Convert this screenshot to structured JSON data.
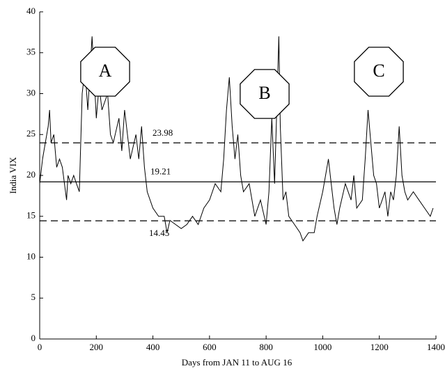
{
  "chart_data": {
    "type": "line",
    "x_label": "Days from JAN 11 to AUG 16",
    "y_label": "India VIX",
    "x": [
      0,
      10,
      20,
      30,
      35,
      40,
      50,
      60,
      70,
      80,
      95,
      100,
      110,
      120,
      130,
      140,
      150,
      160,
      170,
      185,
      200,
      210,
      220,
      240,
      250,
      260,
      280,
      290,
      300,
      320,
      340,
      350,
      360,
      370,
      380,
      400,
      420,
      440,
      450,
      460,
      480,
      500,
      520,
      540,
      560,
      580,
      600,
      620,
      640,
      650,
      660,
      670,
      680,
      690,
      700,
      710,
      720,
      740,
      760,
      780,
      800,
      810,
      820,
      830,
      840,
      845,
      850,
      860,
      870,
      880,
      900,
      920,
      930,
      950,
      970,
      980,
      1000,
      1010,
      1020,
      1030,
      1040,
      1050,
      1060,
      1080,
      1100,
      1110,
      1120,
      1140,
      1150,
      1160,
      1170,
      1180,
      1190,
      1200,
      1210,
      1220,
      1230,
      1240,
      1250,
      1260,
      1270,
      1280,
      1290,
      1300,
      1320,
      1340,
      1360,
      1380,
      1390
    ],
    "series": [
      {
        "name": "India VIX",
        "color": "#000000",
        "values": [
          19,
          22,
          24,
          26,
          28,
          24,
          25,
          21,
          22,
          21,
          17,
          20,
          19,
          20,
          19,
          18,
          30,
          33,
          28,
          37,
          27,
          31,
          28,
          30,
          25,
          24,
          27,
          23,
          28,
          22,
          25,
          22,
          26,
          21,
          18,
          16,
          15,
          15,
          13,
          14.5,
          14,
          13.5,
          14,
          15,
          14,
          16,
          17,
          19,
          18,
          22,
          28,
          32,
          26,
          22,
          25,
          20,
          18,
          19,
          15,
          17,
          14,
          18,
          27,
          19,
          31,
          37,
          26,
          17,
          18,
          15,
          14,
          13,
          12,
          13,
          13,
          15,
          18,
          20,
          22,
          19,
          16,
          14,
          16,
          19,
          17,
          20,
          16,
          17,
          22,
          28,
          24,
          20,
          19,
          16,
          17,
          18,
          15,
          18,
          17,
          20,
          26,
          20,
          18,
          17,
          18,
          17,
          16,
          15,
          16
        ]
      }
    ],
    "reference_lines": [
      {
        "value": 23.98,
        "style": "dashed"
      },
      {
        "value": 19.21,
        "style": "solid"
      },
      {
        "value": 14.45,
        "style": "dashed"
      }
    ],
    "annotations": [
      "A",
      "B",
      "C"
    ],
    "xlim": [
      0,
      1400
    ],
    "ylim": [
      0,
      40
    ],
    "xticks": [
      0,
      200,
      400,
      600,
      800,
      1000,
      1200,
      1400
    ],
    "yticks": [
      0,
      5,
      10,
      15,
      20,
      25,
      30,
      35,
      40
    ],
    "grid": false
  }
}
